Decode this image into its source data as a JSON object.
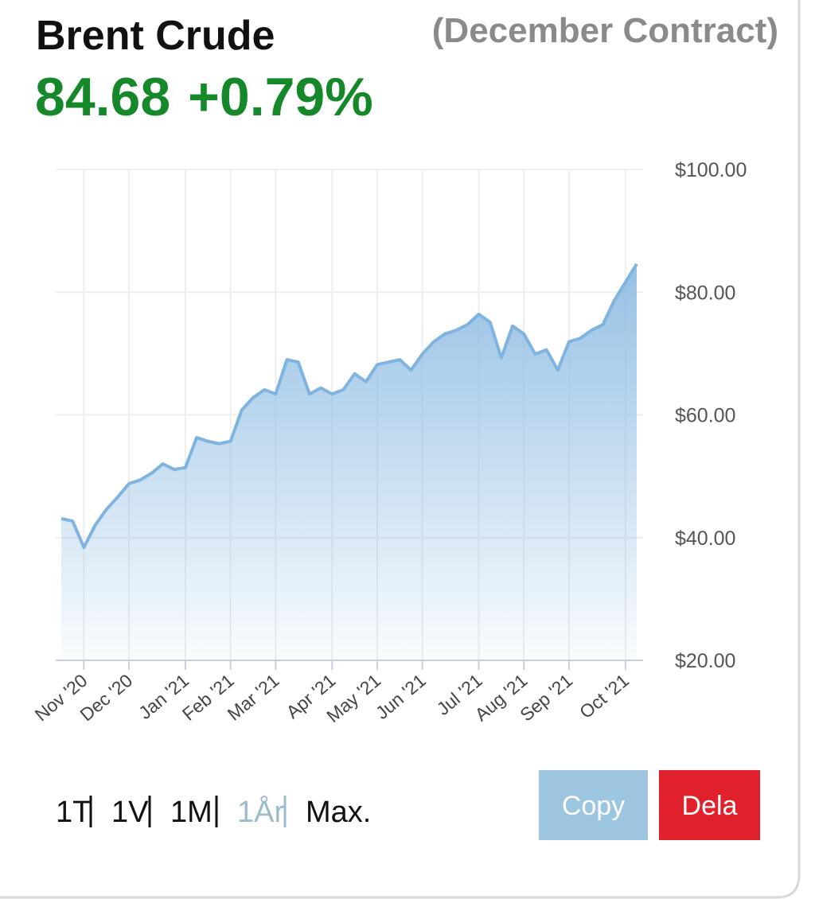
{
  "chart_data": {
    "type": "area",
    "title": "Brent Crude",
    "subtitle": "(December Contract)",
    "price": "84.68",
    "change": "+0.79%",
    "color": "#7fb3e0",
    "categories": [
      null,
      null,
      "Nov '20",
      null,
      null,
      null,
      "Dec '20",
      null,
      null,
      null,
      null,
      "Jan '21",
      null,
      null,
      null,
      "Feb '21",
      null,
      null,
      null,
      "Mar '21",
      null,
      null,
      null,
      null,
      "Apr '21",
      null,
      null,
      null,
      "May '21",
      null,
      null,
      null,
      "Jun '21",
      null,
      null,
      null,
      null,
      "Jul '21",
      null,
      null,
      null,
      "Aug '21",
      null,
      null,
      null,
      "Sep '21",
      null,
      null,
      null,
      null,
      "Oct '21",
      null
    ],
    "values": [
      43.1,
      42.7,
      38.4,
      42,
      44.6,
      46.6,
      48.8,
      49.4,
      50.5,
      52,
      51.1,
      51.4,
      56.3,
      55.7,
      55.3,
      55.7,
      60.8,
      62.8,
      64.1,
      63.4,
      69,
      68.6,
      63.4,
      64.4,
      63.4,
      64.1,
      66.7,
      65.4,
      68.2,
      68.6,
      69,
      67.3,
      69.9,
      71.9,
      73.2,
      73.8,
      74.7,
      76.4,
      75.1,
      69.3,
      74.5,
      73.2,
      69.9,
      70.6,
      67.3,
      71.9,
      72.5,
      73.8,
      74.7,
      78.6,
      81.6,
      84.6
    ],
    "ylim": [
      20,
      100
    ],
    "yticks": [
      {
        "value": 20,
        "label": "$20.00"
      },
      {
        "value": 40,
        "label": "$40.00"
      },
      {
        "value": 60,
        "label": "$60.00"
      },
      {
        "value": 80,
        "label": "$80.00"
      },
      {
        "value": 100,
        "label": "$100.00"
      }
    ],
    "grid": true
  },
  "controls": {
    "periods": [
      "1T",
      "1V",
      "1M",
      "1År",
      "Max."
    ],
    "active_period": 3,
    "buttons": [
      "Copy",
      "Dela"
    ]
  }
}
